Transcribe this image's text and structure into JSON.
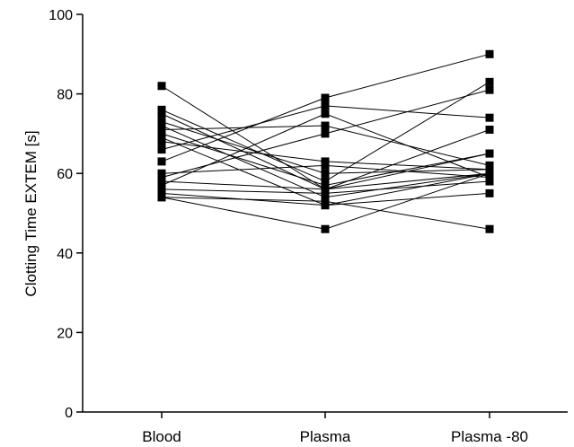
{
  "chart_data": {
    "type": "line",
    "title": "",
    "xlabel": "",
    "ylabel": "Clotting Time EXTEM [s]",
    "categories": [
      "Blood",
      "Plasma",
      "Plasma -80"
    ],
    "ylim": [
      0,
      100
    ],
    "yticks": [
      0,
      20,
      40,
      60,
      80,
      100
    ],
    "grid": false,
    "legend": "none",
    "marker": "square",
    "color": "#000000",
    "series": [
      {
        "values": [
          82,
          56,
          60
        ]
      },
      {
        "values": [
          76,
          58,
          83
        ]
      },
      {
        "values": [
          75,
          56,
          65
        ]
      },
      {
        "values": [
          73,
          60,
          61
        ]
      },
      {
        "values": [
          72,
          54,
          60
        ]
      },
      {
        "values": [
          71,
          72,
          62
        ]
      },
      {
        "values": [
          70,
          57,
          65
        ]
      },
      {
        "values": [
          69,
          52,
          60
        ]
      },
      {
        "values": [
          68,
          63,
          61
        ]
      },
      {
        "values": [
          66,
          77,
          74
        ]
      },
      {
        "values": [
          63,
          79,
          90
        ]
      },
      {
        "values": [
          60,
          62,
          59
        ]
      },
      {
        "values": [
          59,
          70,
          81
        ]
      },
      {
        "values": [
          58,
          56,
          71
        ]
      },
      {
        "values": [
          57,
          75,
          59
        ]
      },
      {
        "values": [
          56,
          55,
          58
        ]
      },
      {
        "values": [
          55,
          52,
          55
        ]
      },
      {
        "values": [
          54,
          53,
          46
        ]
      },
      {
        "values": [
          54,
          46,
          60
        ]
      }
    ]
  }
}
